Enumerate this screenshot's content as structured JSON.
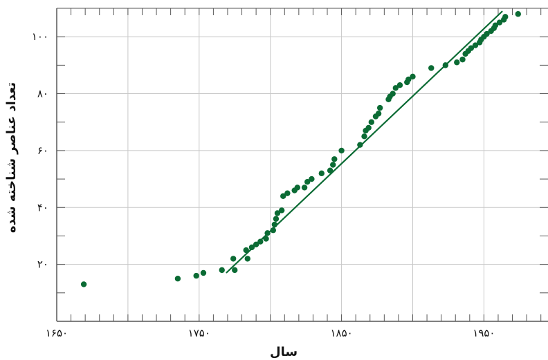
{
  "chart_data": {
    "type": "scatter",
    "title": "",
    "xlabel": "سال",
    "ylabel": "تعداد عناصر شناخته شده",
    "xlim": [
      1650,
      1995
    ],
    "ylim": [
      0,
      110
    ],
    "grid": true,
    "x_ticks": [
      {
        "value": 1650,
        "label": "۱۶۵۰"
      },
      {
        "value": 1750,
        "label": "۱۷۵۰"
      },
      {
        "value": 1850,
        "label": "۱۸۵۰"
      },
      {
        "value": 1950,
        "label": "۱۹۵۰"
      }
    ],
    "y_ticks": [
      {
        "value": 20,
        "label": "۲۰"
      },
      {
        "value": 40,
        "label": "۴۰"
      },
      {
        "value": 60,
        "label": "۶۰"
      },
      {
        "value": 80,
        "label": "۸۰"
      },
      {
        "value": 100,
        "label": "۱۰۰"
      }
    ],
    "colors": {
      "points": "#0b6b34",
      "fit_line": "#0b6b34",
      "grid": "#c8c8c8",
      "axis": "#555555"
    },
    "points": [
      {
        "x": 1669,
        "y": 13
      },
      {
        "x": 1735,
        "y": 15
      },
      {
        "x": 1748,
        "y": 16
      },
      {
        "x": 1753,
        "y": 17
      },
      {
        "x": 1766,
        "y": 18
      },
      {
        "x": 1774,
        "y": 22
      },
      {
        "x": 1775,
        "y": 18
      },
      {
        "x": 1783,
        "y": 25
      },
      {
        "x": 1784,
        "y": 22
      },
      {
        "x": 1787,
        "y": 26
      },
      {
        "x": 1790,
        "y": 27
      },
      {
        "x": 1793,
        "y": 28
      },
      {
        "x": 1797,
        "y": 29
      },
      {
        "x": 1798,
        "y": 31
      },
      {
        "x": 1802,
        "y": 32
      },
      {
        "x": 1803,
        "y": 34
      },
      {
        "x": 1804,
        "y": 36
      },
      {
        "x": 1805,
        "y": 38
      },
      {
        "x": 1808,
        "y": 39
      },
      {
        "x": 1809,
        "y": 44
      },
      {
        "x": 1812,
        "y": 45
      },
      {
        "x": 1817,
        "y": 46
      },
      {
        "x": 1819,
        "y": 47
      },
      {
        "x": 1824,
        "y": 47
      },
      {
        "x": 1826,
        "y": 49
      },
      {
        "x": 1829,
        "y": 50
      },
      {
        "x": 1836,
        "y": 52
      },
      {
        "x": 1842,
        "y": 53
      },
      {
        "x": 1844,
        "y": 55
      },
      {
        "x": 1845,
        "y": 57
      },
      {
        "x": 1850,
        "y": 60
      },
      {
        "x": 1863,
        "y": 62
      },
      {
        "x": 1866,
        "y": 65
      },
      {
        "x": 1867,
        "y": 67
      },
      {
        "x": 1869,
        "y": 68
      },
      {
        "x": 1871,
        "y": 70
      },
      {
        "x": 1874,
        "y": 72
      },
      {
        "x": 1876,
        "y": 73
      },
      {
        "x": 1877,
        "y": 75
      },
      {
        "x": 1883,
        "y": 78
      },
      {
        "x": 1884,
        "y": 79
      },
      {
        "x": 1886,
        "y": 80
      },
      {
        "x": 1888,
        "y": 82
      },
      {
        "x": 1891,
        "y": 83
      },
      {
        "x": 1896,
        "y": 84
      },
      {
        "x": 1897,
        "y": 85
      },
      {
        "x": 1900,
        "y": 86
      },
      {
        "x": 1913,
        "y": 89
      },
      {
        "x": 1923,
        "y": 90
      },
      {
        "x": 1931,
        "y": 91
      },
      {
        "x": 1935,
        "y": 92
      },
      {
        "x": 1937,
        "y": 94
      },
      {
        "x": 1939,
        "y": 95
      },
      {
        "x": 1941,
        "y": 96
      },
      {
        "x": 1944,
        "y": 97
      },
      {
        "x": 1947,
        "y": 98
      },
      {
        "x": 1948,
        "y": 99
      },
      {
        "x": 1950,
        "y": 100
      },
      {
        "x": 1952,
        "y": 101
      },
      {
        "x": 1955,
        "y": 102
      },
      {
        "x": 1957,
        "y": 103
      },
      {
        "x": 1958,
        "y": 104
      },
      {
        "x": 1961,
        "y": 105
      },
      {
        "x": 1964,
        "y": 106
      },
      {
        "x": 1965,
        "y": 107
      },
      {
        "x": 1974,
        "y": 108
      }
    ],
    "fit_line": {
      "x1": 1769,
      "y1": 17,
      "x2": 1963,
      "y2": 109
    }
  }
}
